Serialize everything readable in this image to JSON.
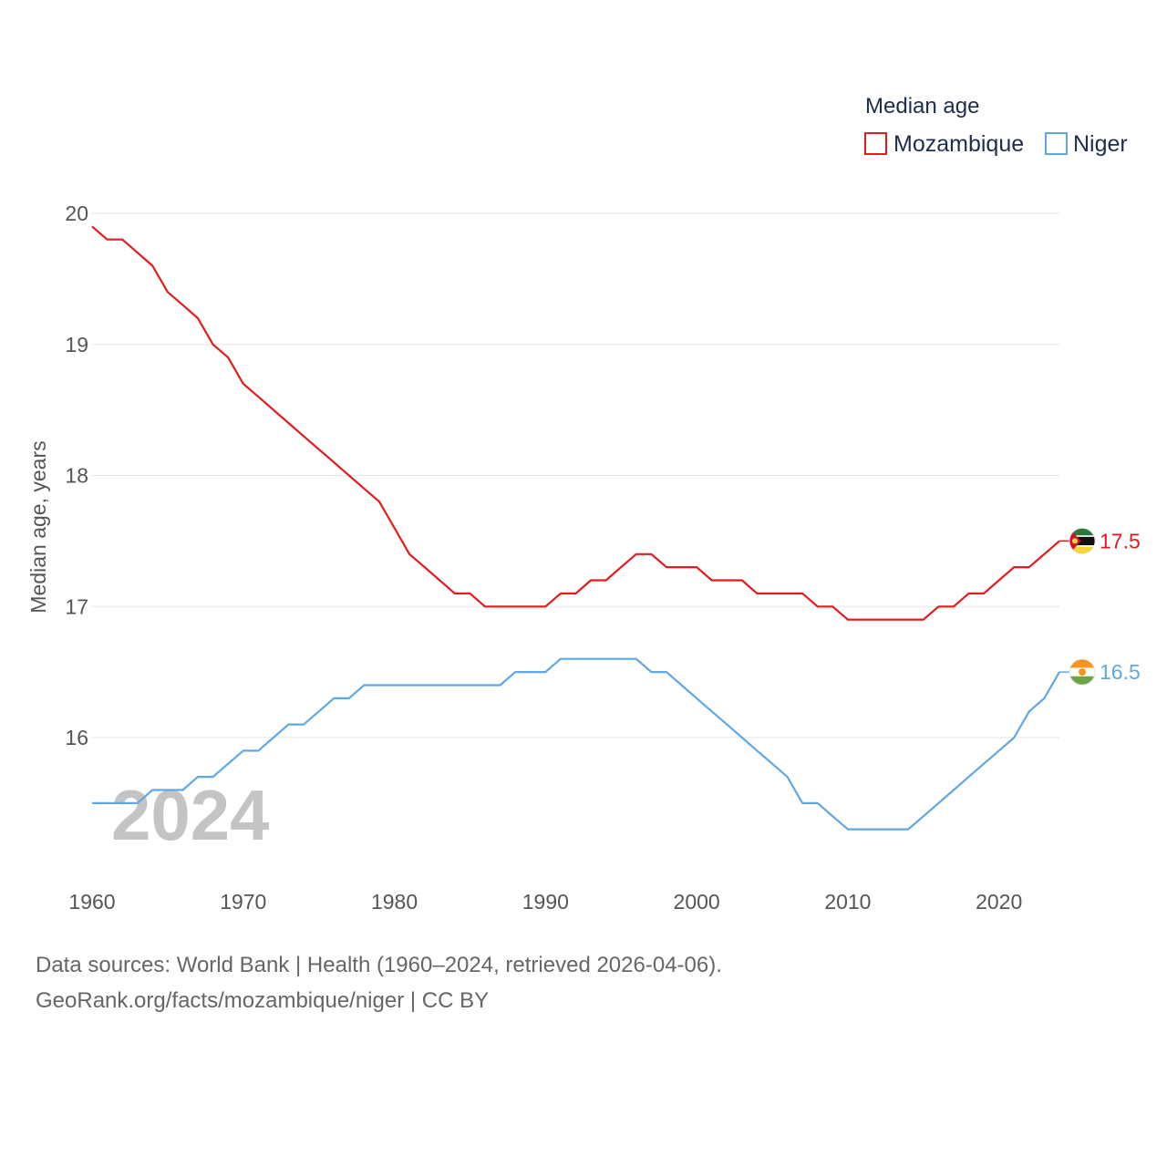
{
  "chart_data": {
    "type": "line",
    "legend_title": "Median age",
    "ylabel": "Median age, years",
    "xlim": [
      1960,
      2024
    ],
    "ylim": [
      15,
      20
    ],
    "x_ticks": [
      "1960",
      "1970",
      "1980",
      "1990",
      "2000",
      "2010",
      "2020"
    ],
    "y_ticks": [
      "16",
      "17",
      "18",
      "19",
      "20"
    ],
    "year_label": "2024",
    "series": [
      {
        "name": "Mozambique",
        "color": "#e41a1c",
        "end_label": "17.5",
        "flag": "mozambique-flag-icon",
        "x": [
          1960,
          1961,
          1962,
          1963,
          1964,
          1965,
          1966,
          1967,
          1968,
          1969,
          1970,
          1971,
          1972,
          1973,
          1974,
          1975,
          1976,
          1977,
          1978,
          1979,
          1980,
          1981,
          1982,
          1983,
          1984,
          1985,
          1986,
          1987,
          1988,
          1989,
          1990,
          1991,
          1992,
          1993,
          1994,
          1995,
          1996,
          1997,
          1998,
          1999,
          2000,
          2001,
          2002,
          2003,
          2004,
          2005,
          2006,
          2007,
          2008,
          2009,
          2010,
          2011,
          2012,
          2013,
          2014,
          2015,
          2016,
          2017,
          2018,
          2019,
          2020,
          2021,
          2022,
          2023,
          2024
        ],
        "values": [
          19.9,
          19.8,
          19.8,
          19.7,
          19.6,
          19.4,
          19.3,
          19.2,
          19.0,
          18.9,
          18.7,
          18.6,
          18.5,
          18.4,
          18.3,
          18.2,
          18.1,
          18.0,
          17.9,
          17.8,
          17.6,
          17.4,
          17.3,
          17.2,
          17.1,
          17.1,
          17.0,
          17.0,
          17.0,
          17.0,
          17.0,
          17.1,
          17.1,
          17.2,
          17.2,
          17.3,
          17.4,
          17.4,
          17.3,
          17.3,
          17.3,
          17.2,
          17.2,
          17.2,
          17.1,
          17.1,
          17.1,
          17.1,
          17.0,
          17.0,
          16.9,
          16.9,
          16.9,
          16.9,
          16.9,
          16.9,
          17.0,
          17.0,
          17.1,
          17.1,
          17.2,
          17.3,
          17.3,
          17.4,
          17.5
        ]
      },
      {
        "name": "Niger",
        "color": "#5ea8e6",
        "end_label": "16.5",
        "flag": "niger-flag-icon",
        "x": [
          1960,
          1961,
          1962,
          1963,
          1964,
          1965,
          1966,
          1967,
          1968,
          1969,
          1970,
          1971,
          1972,
          1973,
          1974,
          1975,
          1976,
          1977,
          1978,
          1979,
          1980,
          1981,
          1982,
          1983,
          1984,
          1985,
          1986,
          1987,
          1988,
          1989,
          1990,
          1991,
          1992,
          1993,
          1994,
          1995,
          1996,
          1997,
          1998,
          1999,
          2000,
          2001,
          2002,
          2003,
          2004,
          2005,
          2006,
          2007,
          2008,
          2009,
          2010,
          2011,
          2012,
          2013,
          2014,
          2015,
          2016,
          2017,
          2018,
          2019,
          2020,
          2021,
          2022,
          2023,
          2024
        ],
        "values": [
          15.5,
          15.5,
          15.5,
          15.5,
          15.6,
          15.6,
          15.6,
          15.7,
          15.7,
          15.8,
          15.9,
          15.9,
          16.0,
          16.1,
          16.1,
          16.2,
          16.3,
          16.3,
          16.4,
          16.4,
          16.4,
          16.4,
          16.4,
          16.4,
          16.4,
          16.4,
          16.4,
          16.4,
          16.5,
          16.5,
          16.5,
          16.6,
          16.6,
          16.6,
          16.6,
          16.6,
          16.6,
          16.5,
          16.5,
          16.4,
          16.3,
          16.2,
          16.1,
          16.0,
          15.9,
          15.8,
          15.7,
          15.5,
          15.5,
          15.4,
          15.3,
          15.3,
          15.3,
          15.3,
          15.3,
          15.4,
          15.5,
          15.6,
          15.7,
          15.8,
          15.9,
          16.0,
          16.2,
          16.3,
          16.5
        ]
      }
    ]
  },
  "footer": {
    "source_line": "Data sources: World Bank | Health (1960–2024, retrieved 2026-04-06).",
    "url_line": "GeoRank.org/facts/mozambique/niger | CC BY"
  }
}
